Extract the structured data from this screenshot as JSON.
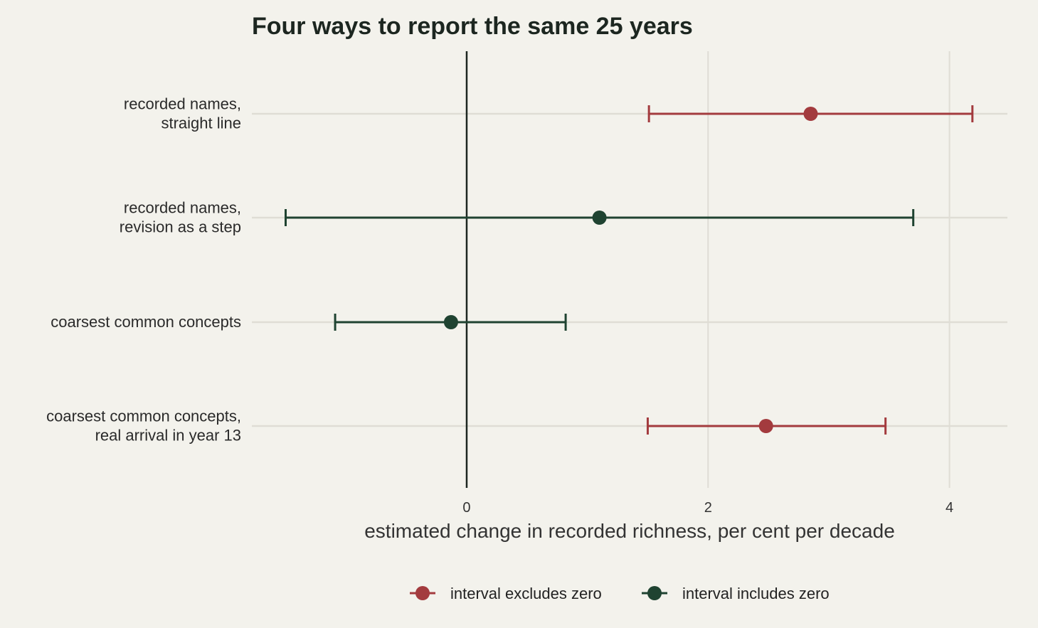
{
  "chart_data": {
    "type": "forest",
    "title": "Four ways to report the same 25 years",
    "xlabel": "estimated change in recorded richness, per cent per decade",
    "ylabel": "",
    "xlim": [
      -1.78,
      4.48
    ],
    "x_ticks": [
      0,
      2,
      4
    ],
    "reference_line": 0,
    "grid": true,
    "legend_position": "bottom",
    "legend": [
      {
        "key": "excludes",
        "label": "interval excludes zero",
        "color": "#a33b3e"
      },
      {
        "key": "includes",
        "label": "interval includes zero",
        "color": "#1f4331"
      }
    ],
    "rows": [
      {
        "label_lines": [
          "recorded names,",
          "straight line"
        ],
        "estimate": 2.85,
        "lower": 1.51,
        "upper": 4.19,
        "group": "excludes"
      },
      {
        "label_lines": [
          "recorded names,",
          "revision as a step"
        ],
        "estimate": 1.1,
        "lower": -1.5,
        "upper": 3.7,
        "group": "includes"
      },
      {
        "label_lines": [
          "coarsest common concepts"
        ],
        "estimate": -0.13,
        "lower": -1.09,
        "upper": 0.82,
        "group": "includes"
      },
      {
        "label_lines": [
          "coarsest common concepts,",
          "real arrival in year 13"
        ],
        "estimate": 2.48,
        "lower": 1.5,
        "upper": 3.47,
        "group": "excludes"
      }
    ]
  }
}
